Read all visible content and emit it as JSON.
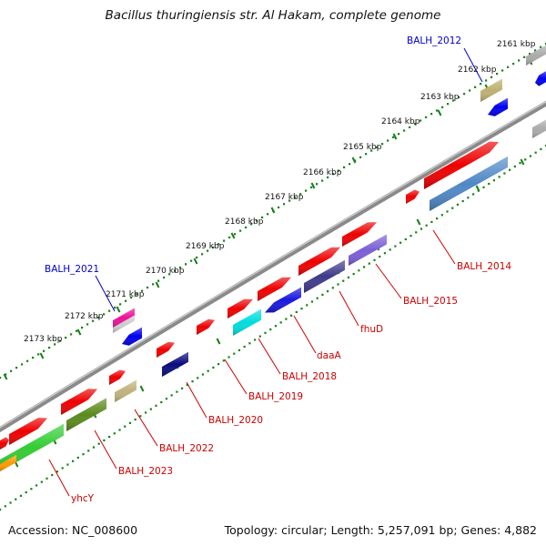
{
  "title": "Bacillus thuringiensis str. Al Hakam, complete genome",
  "accession": "Accession: NC_008600",
  "summary": "Topology: circular; Length: 5,257,091 bp; Genes: 4,882",
  "ticks": [
    "2161 kbp",
    "2162 kbp",
    "2163 kbp",
    "2164 kbp",
    "2165 kbp",
    "2166 kbp",
    "2167 kbp",
    "2168 kbp",
    "2169 kbp",
    "2170 kbp",
    "2171 kbp",
    "2172 kbp",
    "2173 kbp"
  ],
  "gene_labels": [
    "BALH_2012",
    "BALH_2021",
    "BALH_2014",
    "BALH_2015",
    "fhuD",
    "daaA",
    "BALH_2018",
    "BALH_2019",
    "BALH_2020",
    "BALH_2022",
    "BALH_2023",
    "yhcY"
  ],
  "colors": {
    "forward_label": "#0000cc",
    "reverse_label": "#cc0000",
    "tick": "#1a7f1a",
    "backbone": "#888888"
  }
}
